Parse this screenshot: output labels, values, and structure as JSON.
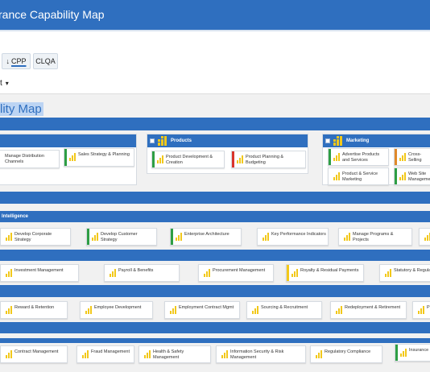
{
  "header": {
    "title": "rance Capability Map"
  },
  "toolbar": {
    "cpp_arrow": "↓",
    "cpp_label": "CPP",
    "clqa_label": "CLQA"
  },
  "view_select": {
    "value": "t",
    "caret": "▾"
  },
  "map_title": "lity Map",
  "colors": {
    "brand": "#2f6fbf",
    "green": "#2e9e44",
    "red": "#d9342b",
    "yellow": "#f2c81a",
    "orange": "#e0892a"
  },
  "row1": {
    "panels": [
      {
        "name": "",
        "cards": [
          "Manage Distribution Channels",
          "Sales Strategy & Planning"
        ]
      },
      {
        "name": "Products",
        "cards": [
          "Product Development & Creation",
          "Product Planning & Budgeting"
        ]
      },
      {
        "name": "Marketing",
        "cards": [
          "Advertise Products and Services",
          "Cross-Selling",
          "Product & Service Marketing",
          "Web Site Management"
        ]
      }
    ]
  },
  "row2": {
    "band_label": "Intelligence",
    "cards": [
      "Develop Corporate Strategy",
      "Develop Customer Strategy",
      "Enterprise Architecture",
      "Key Performance Indicators",
      "Manage Programs & Projects"
    ]
  },
  "row3": {
    "cards": [
      "Investment Management",
      "Payroll & Benefits",
      "Procurement Management",
      "Royalty & Residual Payments",
      "Statutory & Regulato"
    ]
  },
  "row4": {
    "cards": [
      "Reward & Retention",
      "Employee Development",
      "Employment Contract Mgmt",
      "Sourcing & Recruitment",
      "Redeployment & Retirement",
      "P"
    ]
  },
  "row5": {
    "cards": [
      "Contract Management",
      "Fraud Management",
      "Health & Safety Management",
      "Information Security & Risk Management",
      "Regulatory Compliance",
      "Insurance M"
    ]
  }
}
